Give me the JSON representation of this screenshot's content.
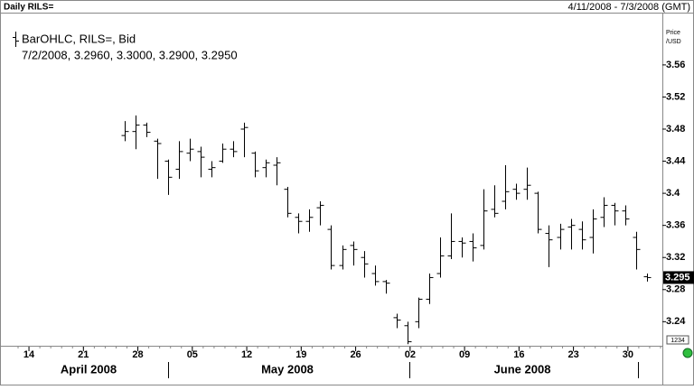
{
  "chart_data": {
    "type": "ohlc",
    "title": "Daily RILS=",
    "range_text": "4/11/2008 - 7/3/2008 (GMT)",
    "legend_title": "BarOHLC, RILS=, Bid",
    "legend_values": "7/2/2008, 3.2960, 3.3000, 3.2900, 3.2950",
    "y_label": "Price",
    "y_unit": "/USD",
    "badge": "1234",
    "last_price": 3.295,
    "color": "#000000",
    "xlim": [
      "4/11/2008",
      "7/3/2008"
    ],
    "xticks": [
      {
        "value": "4/14/2008",
        "label": "14"
      },
      {
        "value": "4/21/2008",
        "label": "21"
      },
      {
        "value": "4/28/2008",
        "label": "28"
      },
      {
        "value": "5/5/2008",
        "label": "05"
      },
      {
        "value": "5/12/2008",
        "label": "12"
      },
      {
        "value": "5/19/2008",
        "label": "19"
      },
      {
        "value": "5/26/2008",
        "label": "26"
      },
      {
        "value": "6/2/2008",
        "label": "02"
      },
      {
        "value": "6/9/2008",
        "label": "09"
      },
      {
        "value": "6/16/2008",
        "label": "16"
      },
      {
        "value": "6/23/2008",
        "label": "23"
      },
      {
        "value": "6/30/2008",
        "label": "30"
      }
    ],
    "months": [
      "April 2008",
      "May 2008",
      "June 2008"
    ],
    "ylim": [
      3.21,
      3.624
    ],
    "yticks": [
      3.24,
      3.28,
      3.32,
      3.36,
      3.4,
      3.44,
      3.48,
      3.52,
      3.56
    ],
    "x": [
      "4/25/2008",
      "4/28/2008",
      "4/29/2008",
      "4/30/2008",
      "5/1/2008",
      "5/2/2008",
      "5/5/2008",
      "5/6/2008",
      "5/7/2008",
      "5/8/2008",
      "5/9/2008",
      "5/12/2008",
      "5/13/2008",
      "5/14/2008",
      "5/15/2008",
      "5/16/2008",
      "5/19/2008",
      "5/20/2008",
      "5/21/2008",
      "5/22/2008",
      "5/23/2008",
      "5/26/2008",
      "5/27/2008",
      "5/28/2008",
      "5/29/2008",
      "5/30/2008",
      "6/2/2008",
      "6/3/2008",
      "6/4/2008",
      "6/5/2008",
      "6/6/2008",
      "6/9/2008",
      "6/10/2008",
      "6/11/2008",
      "6/12/2008",
      "6/13/2008",
      "6/16/2008",
      "6/17/2008",
      "6/18/2008",
      "6/19/2008",
      "6/20/2008",
      "6/23/2008",
      "6/24/2008",
      "6/25/2008",
      "6/26/2008",
      "6/27/2008",
      "6/30/2008",
      "7/1/2008",
      "7/2/2008"
    ],
    "open": [
      3.472,
      3.477,
      3.485,
      3.465,
      3.44,
      3.43,
      3.45,
      3.452,
      3.43,
      3.44,
      3.455,
      3.48,
      3.45,
      3.432,
      3.435,
      3.405,
      3.37,
      3.365,
      3.382,
      3.355,
      3.31,
      3.335,
      3.32,
      3.3,
      3.29,
      3.245,
      3.235,
      3.24,
      3.268,
      3.3,
      3.322,
      3.34,
      3.34,
      3.335,
      3.38,
      3.39,
      3.405,
      3.405,
      3.4,
      3.35,
      3.345,
      3.358,
      3.355,
      3.345,
      3.37,
      3.385,
      3.378,
      3.345,
      3.296
    ],
    "high": [
      3.49,
      3.497,
      3.488,
      3.468,
      3.442,
      3.465,
      3.468,
      3.458,
      3.44,
      3.462,
      3.465,
      3.488,
      3.452,
      3.442,
      3.445,
      3.408,
      3.375,
      3.38,
      3.39,
      3.36,
      3.335,
      3.34,
      3.328,
      3.31,
      3.292,
      3.25,
      3.24,
      3.27,
      3.3,
      3.345,
      3.375,
      3.345,
      3.35,
      3.405,
      3.41,
      3.435,
      3.412,
      3.432,
      3.402,
      3.36,
      3.362,
      3.368,
      3.365,
      3.38,
      3.395,
      3.388,
      3.385,
      3.352,
      3.3
    ],
    "low": [
      3.465,
      3.455,
      3.47,
      3.418,
      3.398,
      3.418,
      3.44,
      3.42,
      3.42,
      3.438,
      3.445,
      3.445,
      3.42,
      3.42,
      3.41,
      3.37,
      3.35,
      3.352,
      3.36,
      3.305,
      3.305,
      3.31,
      3.295,
      3.285,
      3.275,
      3.232,
      3.212,
      3.232,
      3.262,
      3.295,
      3.318,
      3.32,
      3.315,
      3.33,
      3.37,
      3.38,
      3.392,
      3.392,
      3.35,
      3.308,
      3.33,
      3.33,
      3.33,
      3.325,
      3.358,
      3.36,
      3.36,
      3.305,
      3.29
    ],
    "close": [
      3.477,
      3.485,
      3.476,
      3.462,
      3.42,
      3.452,
      3.455,
      3.445,
      3.432,
      3.455,
      3.452,
      3.482,
      3.428,
      3.438,
      3.438,
      3.375,
      3.365,
      3.37,
      3.385,
      3.31,
      3.33,
      3.33,
      3.312,
      3.29,
      3.288,
      3.242,
      3.215,
      3.268,
      3.295,
      3.322,
      3.34,
      3.338,
      3.332,
      3.378,
      3.375,
      3.402,
      3.4,
      3.41,
      3.355,
      3.342,
      3.355,
      3.36,
      3.342,
      3.368,
      3.385,
      3.378,
      3.368,
      3.33,
      3.295
    ]
  }
}
